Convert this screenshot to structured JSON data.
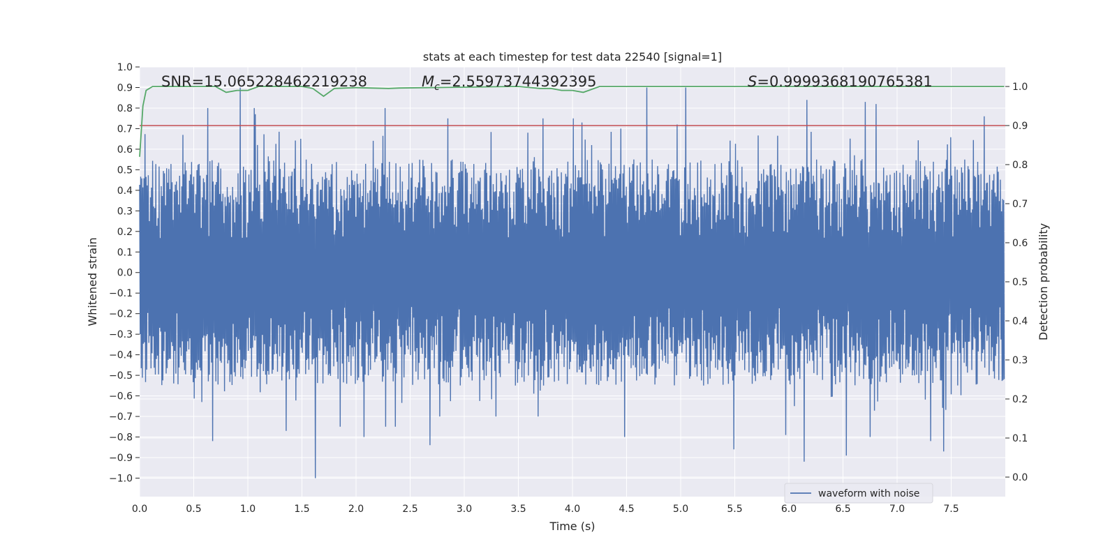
{
  "chart_data": {
    "type": "line",
    "title": "stats at each timestep for test data 22540 [signal=1]",
    "xlabel": "Time (s)",
    "ylabel": "Whitened strain",
    "y2label": "Detection probability",
    "xlim": [
      0,
      8
    ],
    "ylim": [
      -1.09,
      1.0
    ],
    "y2lim": [
      -0.05,
      1.05
    ],
    "xticks": [
      "0.0",
      "0.5",
      "1.0",
      "1.5",
      "2.0",
      "2.5",
      "3.0",
      "3.5",
      "4.0",
      "4.5",
      "5.0",
      "5.5",
      "6.0",
      "6.5",
      "7.0",
      "7.5"
    ],
    "yticks": [
      "1.0",
      "0.9",
      "0.8",
      "0.7",
      "0.6",
      "0.5",
      "0.4",
      "0.3",
      "0.2",
      "0.1",
      "0.0",
      "−0.1",
      "−0.2",
      "−0.3",
      "−0.4",
      "−0.5",
      "−0.6",
      "−0.7",
      "−0.8",
      "−0.9",
      "−1.0"
    ],
    "y2ticks": [
      "1.0",
      "0.9",
      "0.8",
      "0.7",
      "0.6",
      "0.5",
      "0.4",
      "0.3",
      "0.2",
      "0.1",
      "0.0"
    ],
    "annotations": {
      "snr": "SNR=15.065228462219238",
      "mc_symbol": "M",
      "mc_subscript": "c",
      "mc_value": "=2.55973744392395",
      "s_symbol": "S",
      "s_value": "=0.9999368190765381"
    },
    "grid": true,
    "legend": {
      "position": "lower-right",
      "entries": [
        "waveform with noise"
      ]
    },
    "threshold": {
      "axis": "y2",
      "value": 0.9,
      "color": "#c44e52"
    },
    "series": [
      {
        "name": "waveform with noise",
        "axis": "y",
        "color": "#4c72b0",
        "kind": "noise",
        "sample_count": 1600,
        "envelope_abs": 0.55,
        "peaks": [
          [
            0.93,
            0.9
          ],
          [
            1.62,
            -1.0
          ],
          [
            5.05,
            0.9
          ],
          [
            4.69,
            0.9
          ],
          [
            6.14,
            -0.92
          ],
          [
            0.63,
            0.8
          ],
          [
            1.06,
            0.8
          ],
          [
            2.27,
            0.8
          ],
          [
            6.17,
            0.84
          ],
          [
            6.71,
            0.83
          ],
          [
            6.81,
            0.82
          ],
          [
            1.07,
            0.77
          ],
          [
            0.67,
            -0.82
          ],
          [
            2.68,
            -0.84
          ],
          [
            5.49,
            -0.86
          ],
          [
            6.53,
            -0.89
          ],
          [
            7.43,
            -0.87
          ],
          [
            4.48,
            -0.8
          ],
          [
            4.01,
            0.75
          ],
          [
            3.73,
            0.75
          ],
          [
            2.85,
            0.75
          ],
          [
            7.81,
            0.76
          ],
          [
            4.09,
            0.73
          ],
          [
            4.97,
            0.72
          ],
          [
            4.45,
            0.7
          ],
          [
            1.35,
            -0.77
          ],
          [
            1.85,
            -0.75
          ],
          [
            2.07,
            -0.8
          ],
          [
            2.27,
            -0.75
          ],
          [
            2.36,
            -0.75
          ],
          [
            2.77,
            -0.7
          ],
          [
            3.29,
            -0.7
          ],
          [
            3.68,
            -0.7
          ],
          [
            5.97,
            -0.79
          ],
          [
            6.75,
            -0.8
          ],
          [
            7.31,
            -0.82
          ],
          [
            4.18,
            0.62
          ],
          [
            3.59,
            0.68
          ]
        ]
      },
      {
        "name": "",
        "axis": "y2",
        "color": "#55a868",
        "x": [
          0.0,
          0.03,
          0.06,
          0.12,
          0.7,
          0.8,
          0.9,
          1.0,
          1.1,
          1.5,
          1.6,
          1.7,
          1.8,
          1.9,
          2.0,
          2.3,
          2.4,
          3.5,
          3.7,
          3.8,
          3.9,
          4.0,
          4.1,
          4.15,
          4.25,
          4.4,
          7.99
        ],
        "y": [
          0.82,
          0.95,
          0.99,
          1.0,
          1.0,
          0.985,
          0.99,
          0.99,
          1.0,
          1.0,
          0.995,
          0.975,
          0.995,
          0.996,
          0.997,
          0.995,
          0.996,
          1.0,
          0.995,
          0.995,
          0.99,
          0.99,
          0.985,
          0.99,
          1.0,
          1.0,
          1.0
        ]
      }
    ]
  }
}
